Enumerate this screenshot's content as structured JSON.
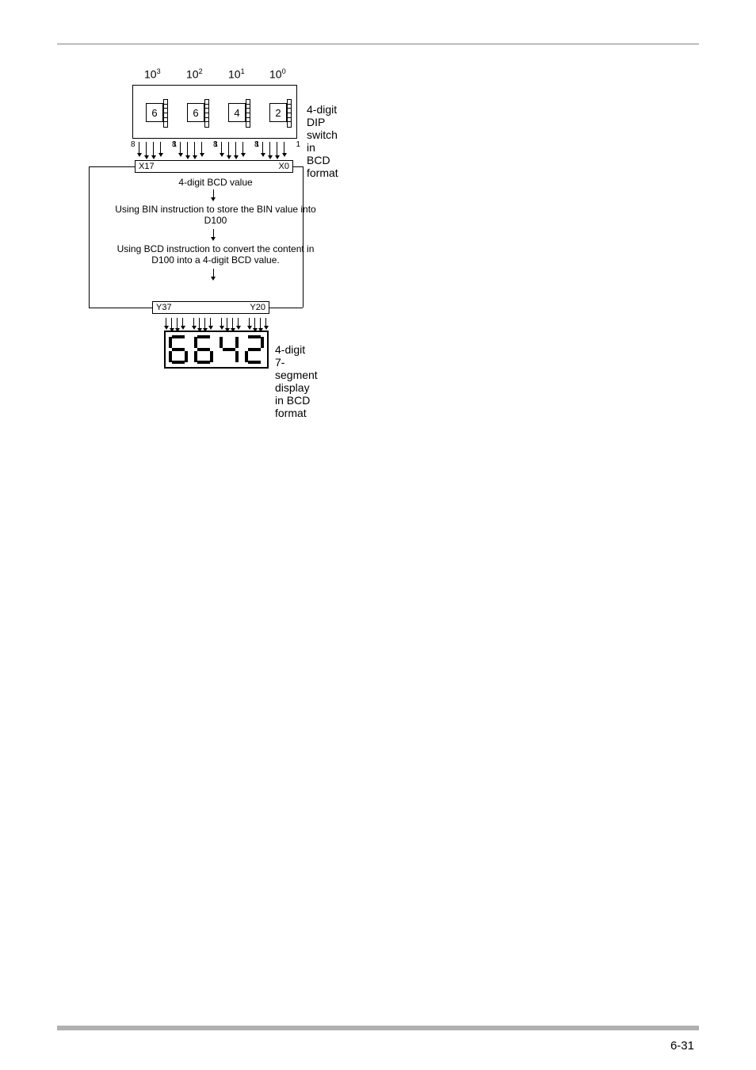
{
  "powers": [
    "10",
    "10",
    "10",
    "10"
  ],
  "exponents": [
    "3",
    "2",
    "1",
    "0"
  ],
  "dip_values": [
    "6",
    "6",
    "4",
    "2"
  ],
  "bit_left": "8",
  "bit_right": "1",
  "x_box": {
    "left": "X17",
    "right": "X0"
  },
  "y_box": {
    "left": "Y37",
    "right": "Y20"
  },
  "flow1": "4-digit BCD value",
  "flow2": "Using BIN instruction to store the BIN value into D100",
  "flow3": "Using BCD instruction to convert the content in D100 into a 4-digit BCD value.",
  "dip_label": "4-digit DIP switch in BCD format",
  "seg_label": "4-digit 7-segment display in BCD format",
  "seg_digits": [
    {
      "a": 1,
      "b": 0,
      "c": 1,
      "d": 1,
      "e": 1,
      "f": 1,
      "g": 1
    },
    {
      "a": 1,
      "b": 0,
      "c": 1,
      "d": 1,
      "e": 1,
      "f": 1,
      "g": 1
    },
    {
      "a": 0,
      "b": 1,
      "c": 1,
      "d": 0,
      "e": 0,
      "f": 1,
      "g": 1
    },
    {
      "a": 1,
      "b": 1,
      "c": 0,
      "d": 1,
      "e": 1,
      "f": 0,
      "g": 1
    }
  ],
  "page": "6-31",
  "colors": {
    "line": "#000000",
    "bg": "#ffffff",
    "footer": "#b0b0b0"
  }
}
